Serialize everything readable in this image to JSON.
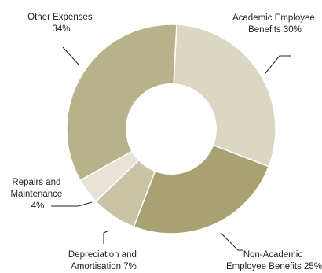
{
  "chart_data": {
    "type": "pie",
    "donut": true,
    "title": "",
    "legend": "none",
    "grid": false,
    "slices": [
      {
        "label_lines": [
          "Academic Employee",
          "Benefits 30%"
        ],
        "value": 30,
        "color": "#dcd7c3"
      },
      {
        "label_lines": [
          "Non-Academic",
          "Employee Benefits 25%"
        ],
        "value": 25,
        "color": "#a8a172"
      },
      {
        "label_lines": [
          "Depreciation and",
          "Amortisation 7%"
        ],
        "value": 7,
        "color": "#c9c3a6"
      },
      {
        "label_lines": [
          "Repairs and",
          "Maintenance",
          "4%"
        ],
        "value": 4,
        "color": "#e7e4d6"
      },
      {
        "label_lines": [
          "Other Expenses",
          "34%"
        ],
        "value": 34,
        "color": "#b8b28b"
      }
    ]
  }
}
